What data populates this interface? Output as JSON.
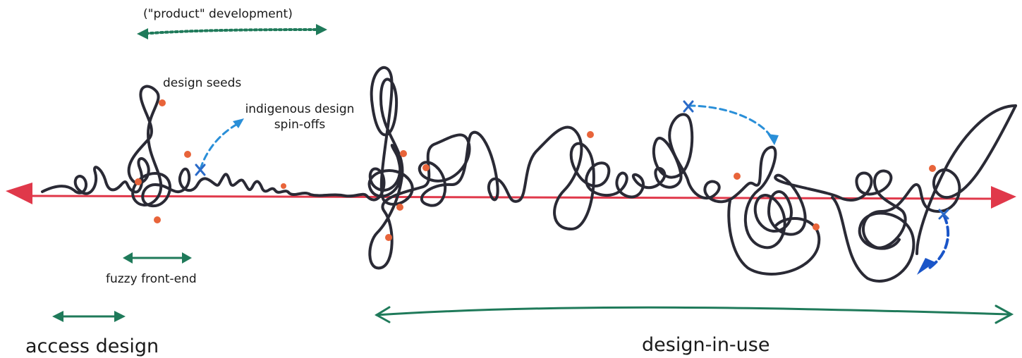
{
  "labels": {
    "product_development": "(\"product\" development)",
    "design_seeds": "design seeds",
    "indigenous_line1": "indigenous design",
    "indigenous_line2": "spin-offs",
    "fuzzy_front_end": "fuzzy front-end",
    "access_design": "access design",
    "design_in_use": "design-in-use"
  },
  "colors": {
    "timeline": "#e0384a",
    "scribble": "#2a2a35",
    "green_arrow": "#1f7a5a",
    "blue_arrow": "#2a8fd8",
    "blue_dark": "#1a55c8",
    "seed_dot": "#e8643a"
  }
}
